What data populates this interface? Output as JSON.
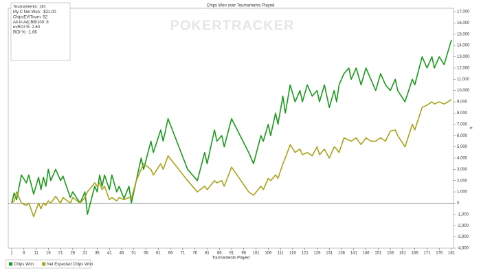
{
  "chart_data": {
    "type": "line",
    "title": "Chips Won over Tournaments Played",
    "x_label": "Tournaments Played",
    "y_label": "#",
    "watermark": "POKERTRACKER",
    "stats": [
      "Tournaments: 181",
      "My C Net Won: -$21.00",
      "ChipsEV/Tourn: 52",
      "All-In Adj BB/100: 8",
      "evROI %: 2.60",
      "ROI %: -1.66"
    ],
    "x": [
      1,
      2,
      3,
      5,
      7,
      8,
      10,
      12,
      13,
      14,
      15,
      16,
      17,
      19,
      21,
      22,
      25,
      26,
      29,
      31,
      32,
      35,
      36,
      37,
      38,
      39,
      41,
      42,
      44,
      45,
      47,
      49,
      50,
      52,
      54,
      55,
      58,
      59,
      62,
      63,
      65,
      73,
      77,
      80,
      81,
      84,
      85,
      87,
      88,
      91,
      98,
      100,
      103,
      104,
      106,
      107,
      109,
      110,
      112,
      113,
      115,
      117,
      119,
      120,
      122,
      124,
      126,
      127,
      129,
      131,
      133,
      134,
      135,
      137,
      139,
      140,
      142,
      144,
      146,
      148,
      150,
      152,
      154,
      156,
      158,
      159,
      162,
      165,
      166,
      169,
      171,
      173,
      174,
      176,
      178,
      181
    ],
    "series": [
      {
        "name": "Chips Won",
        "color": "#1a9a1a",
        "values": [
          0,
          900,
          300,
          2500,
          1800,
          2500,
          800,
          2300,
          1200,
          2300,
          1500,
          3000,
          2000,
          3000,
          2000,
          2400,
          500,
          1000,
          0,
          1000,
          -1000,
          1500,
          1000,
          2500,
          1500,
          2500,
          1200,
          2500,
          1000,
          1500,
          400,
          1500,
          0,
          2000,
          4000,
          3000,
          5500,
          4500,
          6500,
          5500,
          7500,
          3000,
          2000,
          4500,
          3500,
          6500,
          5500,
          6000,
          5000,
          7500,
          4500,
          3500,
          6000,
          5500,
          7000,
          6000,
          8000,
          7000,
          9500,
          8000,
          10500,
          9000,
          10000,
          9000,
          10500,
          9500,
          10000,
          9000,
          10500,
          8500,
          10000,
          9000,
          10500,
          11500,
          12000,
          11000,
          12000,
          10500,
          12000,
          11000,
          10000,
          11500,
          10500,
          10000,
          11000,
          10000,
          9000,
          11000,
          10500,
          13000,
          12000,
          13000,
          12000,
          13000,
          12300,
          14500
        ]
      },
      {
        "name": "Net Expected Chips Won",
        "color": "#a8a21a",
        "values": [
          0,
          200,
          1000,
          0,
          -200,
          0,
          -1200,
          0,
          -500,
          0,
          -200,
          200,
          0,
          600,
          0,
          500,
          0,
          500,
          0,
          500,
          1000,
          1800,
          1500,
          1800,
          1200,
          1500,
          300,
          500,
          200,
          500,
          300,
          500,
          400,
          2000,
          3000,
          3500,
          3000,
          2500,
          3500,
          3000,
          4200,
          2000,
          1000,
          1500,
          1200,
          2000,
          1800,
          2000,
          1500,
          3200,
          1000,
          700,
          1500,
          1200,
          2200,
          2000,
          2500,
          2200,
          3500,
          4000,
          5200,
          4500,
          4800,
          4300,
          4500,
          4200,
          5000,
          4300,
          4800,
          4000,
          5000,
          4800,
          4500,
          5800,
          5600,
          5500,
          5800,
          5200,
          5800,
          5500,
          5500,
          5800,
          5500,
          6400,
          6500,
          6000,
          5000,
          7000,
          6500,
          8500,
          8700,
          9000,
          8800,
          9000,
          8800,
          9200
        ]
      }
    ],
    "xlim": [
      1,
      181
    ],
    "xticks": [
      1,
      6,
      11,
      16,
      21,
      26,
      31,
      36,
      41,
      46,
      51,
      56,
      61,
      66,
      71,
      76,
      81,
      86,
      91,
      96,
      101,
      106,
      111,
      116,
      121,
      126,
      131,
      136,
      141,
      146,
      151,
      156,
      161,
      166,
      171,
      176,
      181
    ],
    "ylim": [
      -4000,
      17000
    ],
    "yticks": [
      {
        "value": -4000,
        "label": "-4,000"
      },
      {
        "value": -3000,
        "label": "-3,000"
      },
      {
        "value": -2000,
        "label": "-2,000"
      },
      {
        "value": -1000,
        "label": "-1,000"
      },
      0,
      {
        "value": 1000,
        "label": "1,000"
      },
      {
        "value": 2000,
        "label": "2,000"
      },
      {
        "value": 3000,
        "label": "3,000"
      },
      {
        "value": 4000,
        "label": "4,000"
      },
      {
        "value": 5000,
        "label": "5,000"
      },
      {
        "value": 6000,
        "label": "6,000"
      },
      {
        "value": 7000,
        "label": "7,000"
      },
      {
        "value": 8000,
        "label": "8,000"
      },
      {
        "value": 9000,
        "label": "9,000"
      },
      {
        "value": 10000,
        "label": "10,000"
      },
      {
        "value": 11000,
        "label": "11,000"
      },
      {
        "value": 12000,
        "label": "12,000"
      },
      {
        "value": 13000,
        "label": "13,000"
      },
      {
        "value": 14000,
        "label": "14,000"
      },
      {
        "value": 15000,
        "label": "15,000"
      },
      {
        "value": 16000,
        "label": "16,000"
      },
      {
        "value": 17000,
        "label": "17,000"
      }
    ],
    "legend": "bottom-left"
  }
}
